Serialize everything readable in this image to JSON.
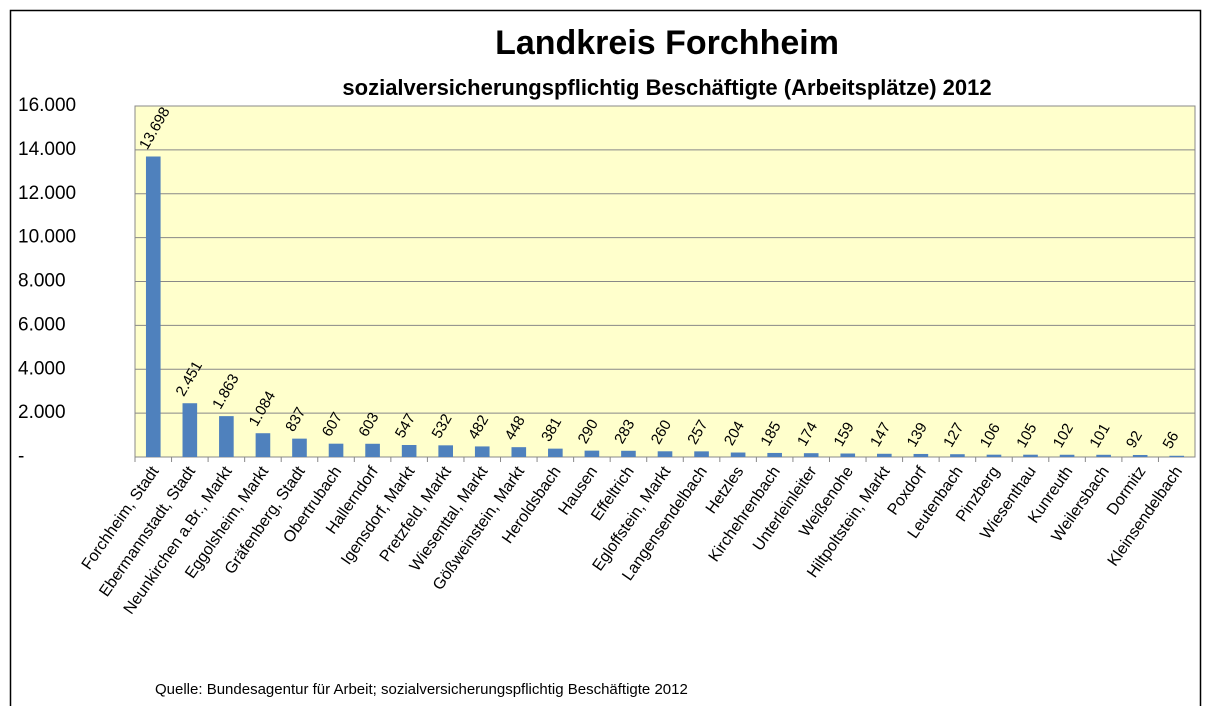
{
  "chart_data": {
    "type": "bar",
    "title": "Landkreis Forchheim",
    "subtitle": "sozialversicherungspflichtig Beschäftigte (Arbeitsplätze) 2012",
    "note": "Quelle: Bundesagentur für Arbeit; sozialversicherungspflichtig Beschäftigte 2012",
    "categories": [
      "Forchheim, Stadt",
      "Ebermannstadt, Stadt",
      "Neunkirchen a.Br., Markt",
      "Eggolsheim, Markt",
      "Gräfenberg, Stadt",
      "Obertrubach",
      "Hallerndorf",
      "Igensdorf, Markt",
      "Pretzfeld, Markt",
      "Wiesenttal, Markt",
      "Gößweinstein, Markt",
      "Heroldsbach",
      "Hausen",
      "Effeltrich",
      "Egloffstein, Markt",
      "Langensendelbach",
      "Hetzles",
      "Kirchehrenbach",
      "Unterleinleiter",
      "Weißenohe",
      "Hiltpoltstein, Markt",
      "Poxdorf",
      "Leutenbach",
      "Pinzberg",
      "Wiesenthau",
      "Kunreuth",
      "Weilersbach",
      "Dormitz",
      "Kleinsendelbach"
    ],
    "values": [
      13698,
      2451,
      1863,
      1084,
      837,
      607,
      603,
      547,
      532,
      482,
      448,
      381,
      290,
      283,
      260,
      257,
      204,
      185,
      174,
      159,
      147,
      139,
      127,
      106,
      105,
      102,
      101,
      92,
      56
    ],
    "value_labels": [
      "13.698",
      "2.451",
      "1.863",
      "1.084",
      "837",
      "607",
      "603",
      "547",
      "532",
      "482",
      "448",
      "381",
      "290",
      "283",
      "260",
      "257",
      "204",
      "185",
      "174",
      "159",
      "147",
      "139",
      "127",
      "106",
      "105",
      "102",
      "101",
      "92",
      "56"
    ],
    "color": "#4f81bd",
    "plot_background": "#ffffcc",
    "ylim": [
      0,
      16000
    ],
    "yticks": [
      {
        "value": 0,
        "label": "-"
      },
      {
        "value": 2000,
        "label": "2.000"
      },
      {
        "value": 4000,
        "label": "4.000"
      },
      {
        "value": 6000,
        "label": "6.000"
      },
      {
        "value": 8000,
        "label": "8.000"
      },
      {
        "value": 10000,
        "label": "10.000"
      },
      {
        "value": 12000,
        "label": "12.000"
      },
      {
        "value": 14000,
        "label": "14.000"
      },
      {
        "value": 16000,
        "label": "16.000"
      }
    ],
    "grid": true
  }
}
